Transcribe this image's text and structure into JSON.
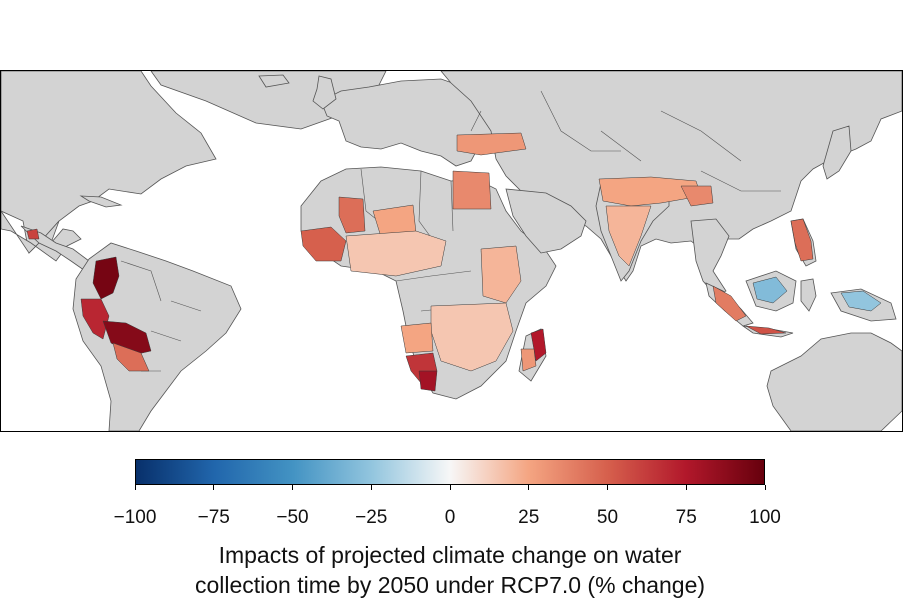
{
  "colors": {
    "land": "#d3d3d3",
    "ocean": "#ffffff",
    "scale_low": "#08306b",
    "scale_mid": "#f7f7f7",
    "scale_high": "#67000d"
  },
  "colorbar": {
    "min": -100,
    "max": 100,
    "ticks": [
      "−100",
      "−75",
      "−50",
      "−25",
      "0",
      "25",
      "50",
      "75",
      "100"
    ],
    "title_line1": "Impacts of projected climate change on water",
    "title_line2": "collection time by 2050 under RCP7.0 (% change)"
  },
  "regions": [
    {
      "name": "Colombia / Venezuela",
      "value": 95
    },
    {
      "name": "Ecuador / Peru",
      "value": 70
    },
    {
      "name": "Peru / Bolivia",
      "value": 90
    },
    {
      "name": "Bolivia south",
      "value": 45
    },
    {
      "name": "Central America",
      "value": 60
    },
    {
      "name": "Mauritania",
      "value": 45
    },
    {
      "name": "Mali / Niger",
      "value": 25
    },
    {
      "name": "Senegal / Guinea",
      "value": 50
    },
    {
      "name": "Sahel belt",
      "value": 15
    },
    {
      "name": "Egypt",
      "value": 35
    },
    {
      "name": "Turkey",
      "value": 30
    },
    {
      "name": "East Africa",
      "value": 20
    },
    {
      "name": "Southern Africa",
      "value": 15
    },
    {
      "name": "Angola",
      "value": 25
    },
    {
      "name": "Namibia",
      "value": 65
    },
    {
      "name": "Namibia south",
      "value": 80
    },
    {
      "name": "Madagascar east",
      "value": 75
    },
    {
      "name": "Madagascar west",
      "value": 30
    },
    {
      "name": "India north",
      "value": 25
    },
    {
      "name": "India south",
      "value": 20
    },
    {
      "name": "Myanmar",
      "value": 35
    },
    {
      "name": "Philippines",
      "value": 45
    },
    {
      "name": "Borneo",
      "value": -30
    },
    {
      "name": "Sumatra",
      "value": 40
    },
    {
      "name": "Java",
      "value": 55
    },
    {
      "name": "Papua",
      "value": -25
    }
  ]
}
